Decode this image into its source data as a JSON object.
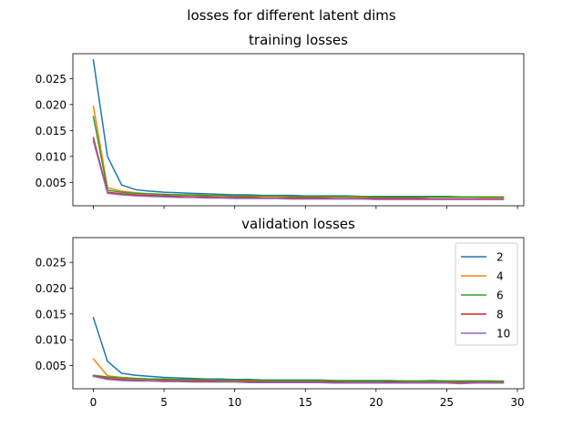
{
  "figure": {
    "suptitle": "losses for different latent dims"
  },
  "chart_data": [
    {
      "type": "line",
      "title": "training losses",
      "xlabel": "",
      "ylabel": "",
      "xlim": [
        -1.45,
        30.45
      ],
      "ylim": [
        0.0005,
        0.0298
      ],
      "x_ticks": [
        0,
        5,
        10,
        15,
        20,
        25,
        30
      ],
      "x_tick_labels_visible": false,
      "y_ticks": [
        0.005,
        0.01,
        0.015,
        0.02,
        0.025
      ],
      "y_tick_labels": [
        "0.005",
        "0.010",
        "0.015",
        "0.020",
        "0.025"
      ],
      "grid": false,
      "legend": null,
      "x": [
        0,
        1,
        2,
        3,
        4,
        5,
        6,
        7,
        8,
        9,
        10,
        11,
        12,
        13,
        14,
        15,
        16,
        17,
        18,
        19,
        20,
        21,
        22,
        23,
        24,
        25,
        26,
        27,
        28,
        29
      ],
      "series": [
        {
          "name": "2",
          "color": "#1f77b4",
          "values": [
            0.0286,
            0.01,
            0.0045,
            0.0036,
            0.0033,
            0.0031,
            0.003,
            0.0029,
            0.0028,
            0.0027,
            0.0026,
            0.0026,
            0.0025,
            0.0025,
            0.0025,
            0.0024,
            0.0024,
            0.0024,
            0.0024,
            0.0023,
            0.0023,
            0.0023,
            0.0023,
            0.0023,
            0.0023,
            0.0023,
            0.0022,
            0.0022,
            0.0022,
            0.0022
          ]
        },
        {
          "name": "4",
          "color": "#ff7f0e",
          "values": [
            0.0197,
            0.004,
            0.0033,
            0.003,
            0.0028,
            0.0027,
            0.0026,
            0.0025,
            0.0025,
            0.0024,
            0.0024,
            0.0023,
            0.0023,
            0.0023,
            0.0022,
            0.0022,
            0.0022,
            0.0022,
            0.0022,
            0.0021,
            0.0021,
            0.0021,
            0.0021,
            0.0021,
            0.0021,
            0.0021,
            0.0021,
            0.0021,
            0.002,
            0.002
          ]
        },
        {
          "name": "6",
          "color": "#2ca02c",
          "values": [
            0.0177,
            0.0035,
            0.0031,
            0.0029,
            0.0028,
            0.0027,
            0.0026,
            0.0026,
            0.0025,
            0.0025,
            0.0024,
            0.0024,
            0.0024,
            0.0024,
            0.0023,
            0.0023,
            0.0023,
            0.0023,
            0.0023,
            0.0023,
            0.0022,
            0.0022,
            0.0022,
            0.0022,
            0.0022,
            0.0022,
            0.0022,
            0.0022,
            0.0022,
            0.0022
          ]
        },
        {
          "name": "8",
          "color": "#d62728",
          "values": [
            0.0136,
            0.0031,
            0.0028,
            0.0026,
            0.0025,
            0.0024,
            0.0023,
            0.0022,
            0.0022,
            0.0021,
            0.0021,
            0.0021,
            0.002,
            0.002,
            0.002,
            0.002,
            0.002,
            0.0019,
            0.0019,
            0.0019,
            0.0019,
            0.0019,
            0.0019,
            0.0019,
            0.0018,
            0.0018,
            0.0018,
            0.0018,
            0.0018,
            0.0018
          ]
        },
        {
          "name": "10",
          "color": "#9467bd",
          "values": [
            0.013,
            0.0029,
            0.0026,
            0.0024,
            0.0023,
            0.0022,
            0.0021,
            0.0021,
            0.002,
            0.002,
            0.0019,
            0.0019,
            0.0019,
            0.0019,
            0.0018,
            0.0018,
            0.0018,
            0.0018,
            0.0018,
            0.0018,
            0.0017,
            0.0017,
            0.0017,
            0.0017,
            0.0017,
            0.0017,
            0.0017,
            0.0017,
            0.0017,
            0.0017
          ]
        }
      ]
    },
    {
      "type": "line",
      "title": "validation losses",
      "xlabel": "",
      "ylabel": "",
      "xlim": [
        -1.45,
        30.45
      ],
      "ylim": [
        0.0005,
        0.0298
      ],
      "x_ticks": [
        0,
        5,
        10,
        15,
        20,
        25,
        30
      ],
      "x_tick_labels": [
        "0",
        "5",
        "10",
        "15",
        "20",
        "25",
        "30"
      ],
      "x_tick_labels_visible": true,
      "y_ticks": [
        0.005,
        0.01,
        0.015,
        0.02,
        0.025
      ],
      "y_tick_labels": [
        "0.005",
        "0.010",
        "0.015",
        "0.020",
        "0.025"
      ],
      "grid": false,
      "legend": "top-right",
      "x": [
        0,
        1,
        2,
        3,
        4,
        5,
        6,
        7,
        8,
        9,
        10,
        11,
        12,
        13,
        14,
        15,
        16,
        17,
        18,
        19,
        20,
        21,
        22,
        23,
        24,
        25,
        26,
        27,
        28,
        29
      ],
      "series": [
        {
          "name": "2",
          "color": "#1f77b4",
          "values": [
            0.0143,
            0.0058,
            0.0035,
            0.0031,
            0.0029,
            0.0027,
            0.0026,
            0.0025,
            0.0024,
            0.0024,
            0.0023,
            0.0023,
            0.0022,
            0.0022,
            0.0022,
            0.0022,
            0.0022,
            0.0021,
            0.0021,
            0.0021,
            0.0021,
            0.0021,
            0.002,
            0.002,
            0.0021,
            0.002,
            0.002,
            0.002,
            0.002,
            0.0019
          ]
        },
        {
          "name": "4",
          "color": "#ff7f0e",
          "values": [
            0.0063,
            0.003,
            0.0027,
            0.0025,
            0.0024,
            0.0023,
            0.0022,
            0.0022,
            0.0021,
            0.0021,
            0.0021,
            0.002,
            0.002,
            0.002,
            0.002,
            0.002,
            0.0019,
            0.0019,
            0.0019,
            0.0019,
            0.0019,
            0.0019,
            0.0019,
            0.0019,
            0.0019,
            0.0018,
            0.0018,
            0.0018,
            0.0018,
            0.0018
          ]
        },
        {
          "name": "6",
          "color": "#2ca02c",
          "values": [
            0.0031,
            0.0028,
            0.0026,
            0.0025,
            0.0024,
            0.0024,
            0.0023,
            0.0023,
            0.0023,
            0.0022,
            0.0022,
            0.0022,
            0.0021,
            0.0021,
            0.0021,
            0.0021,
            0.0021,
            0.0021,
            0.002,
            0.002,
            0.002,
            0.002,
            0.002,
            0.002,
            0.002,
            0.002,
            0.002,
            0.002,
            0.002,
            0.002
          ]
        },
        {
          "name": "8",
          "color": "#d62728",
          "values": [
            0.003,
            0.0025,
            0.0023,
            0.0022,
            0.0021,
            0.0021,
            0.002,
            0.002,
            0.002,
            0.0019,
            0.0019,
            0.0019,
            0.0018,
            0.0018,
            0.0018,
            0.0018,
            0.0018,
            0.0018,
            0.0017,
            0.0017,
            0.0017,
            0.0018,
            0.0017,
            0.0017,
            0.0017,
            0.0017,
            0.0017,
            0.0017,
            0.0017,
            0.0017
          ]
        },
        {
          "name": "10",
          "color": "#9467bd",
          "values": [
            0.0029,
            0.0023,
            0.0021,
            0.002,
            0.002,
            0.0019,
            0.0019,
            0.0018,
            0.0018,
            0.0018,
            0.0018,
            0.0017,
            0.0017,
            0.0017,
            0.0017,
            0.0017,
            0.0017,
            0.0016,
            0.0016,
            0.0016,
            0.0016,
            0.0016,
            0.0016,
            0.0016,
            0.0016,
            0.0016,
            0.0015,
            0.0016,
            0.0016,
            0.0016
          ]
        }
      ]
    }
  ]
}
